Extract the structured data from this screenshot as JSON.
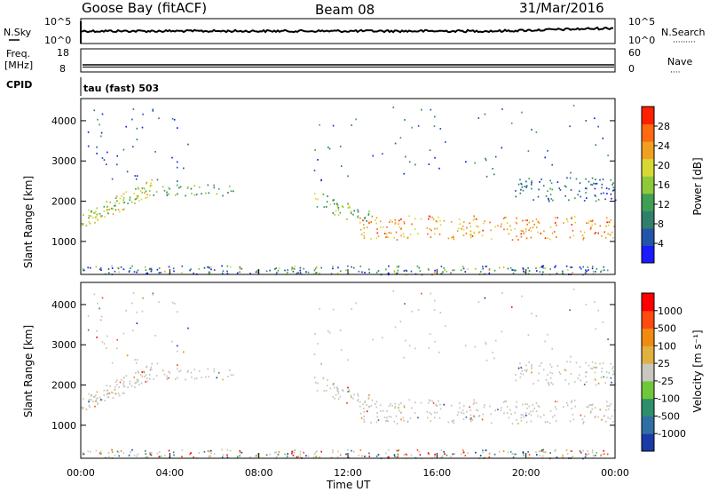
{
  "header": {
    "station": "Goose Bay (fitACF)",
    "beam": "Beam 08",
    "date": "31/Mar/2016"
  },
  "top_panels": {
    "nsky_label": "N.Sky",
    "nsearch_label": "N.Search",
    "nsearch_dots": "·········",
    "noise_ticks_left": [
      "10^5",
      "10^0"
    ],
    "noise_ticks_right": [
      "10^5",
      "10^0"
    ],
    "freq_label_1": "Freq.",
    "freq_label_2": "[MHz]",
    "freq_ticks": [
      "18",
      "8"
    ],
    "nave_label": "Nave",
    "nave_dots": "····",
    "nave_ticks": [
      "60",
      "0"
    ],
    "cpid_label": "CPID",
    "cpid_text": "tau (fast) 503"
  },
  "colors": {
    "power_scale": [
      "#1a1aff",
      "#2255aa",
      "#2f7f6a",
      "#3f9f55",
      "#8fc93a",
      "#d8d835",
      "#f0a020",
      "#ff6a10",
      "#ff2000"
    ],
    "velocity_scale": [
      "#1a3aa8",
      "#2f6fa5",
      "#2e8f6a",
      "#6fc83a",
      "#c8c8c0",
      "#e0b040",
      "#f08a10",
      "#ff4a10",
      "#ff0000"
    ],
    "ground_scatter": "#c4c4bc"
  },
  "chart_data": [
    {
      "type": "heatmap",
      "panel": "power",
      "xlabel": "",
      "ylabel": "Slant Range [km]",
      "xlim": [
        "00:00",
        "24:00"
      ],
      "ylim": [
        180,
        4550
      ],
      "y_ticks": [
        "4000",
        "3000",
        "2000",
        "1000"
      ],
      "colorbar_label": "Power [dB]",
      "colorbar_ticks": [
        "28",
        "24",
        "20",
        "16",
        "12",
        "8",
        "4"
      ],
      "bands": [
        {
          "t0": 0.0,
          "t1": 3.2,
          "r0": 1350,
          "r1": 2350,
          "level": 0.55
        },
        {
          "t0": 3.2,
          "t1": 6.9,
          "r0": 2150,
          "r1": 2450,
          "level": 0.4
        },
        {
          "t0": 10.3,
          "t1": 13.0,
          "r0": 1500,
          "r1": 2050,
          "level": 0.45
        },
        {
          "t0": 12.5,
          "t1": 24.0,
          "r0": 1050,
          "r1": 1650,
          "level": 0.75
        },
        {
          "t0": 19.5,
          "t1": 24.0,
          "r0": 2000,
          "r1": 2600,
          "level": 0.2
        }
      ]
    },
    {
      "type": "heatmap",
      "panel": "velocity",
      "xlabel": "Time UT",
      "ylabel": "Slant Range [km]",
      "xlim": [
        "00:00",
        "24:00"
      ],
      "ylim": [
        180,
        4550
      ],
      "x_ticks": [
        "00:00",
        "04:00",
        "08:00",
        "12:00",
        "16:00",
        "20:00",
        "00:00"
      ],
      "y_ticks": [
        "4000",
        "3000",
        "2000",
        "1000"
      ],
      "colorbar_label": "Velocity [m s⁻¹]",
      "colorbar_ticks": [
        "1000",
        "500",
        "100",
        "25",
        "-25",
        "-100",
        "-500",
        "-1000"
      ]
    }
  ]
}
